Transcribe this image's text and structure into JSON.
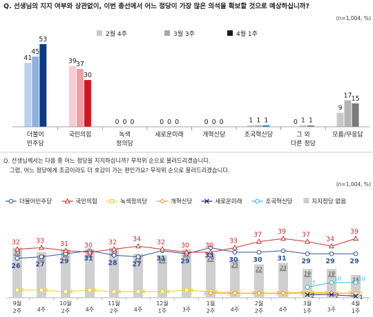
{
  "chart_data": [
    {
      "type": "bar",
      "question": "Q. 선생님의 지지 여부와 상관없이, 이번 총선에서 어느 정당이 가장 많은 의석을 확보할 것으로 예상하십니까?",
      "note": "(n=1,004, %)",
      "categories": [
        [
          "더불어",
          "민주당"
        ],
        [
          "국민의힘"
        ],
        [
          "녹색",
          "정의당"
        ],
        [
          "새로운미래"
        ],
        [
          "개혁신당"
        ],
        [
          "조국혁신당"
        ],
        [
          "그 외",
          "다른 정당"
        ],
        [
          "모름/무응답"
        ]
      ],
      "series": [
        {
          "name": "2월 4주",
          "color": "#c9d6ea",
          "values": [
            41,
            39,
            0,
            0,
            0,
            1,
            0,
            9
          ]
        },
        {
          "name": "3월 3주",
          "color": "#9fb8de",
          "values": [
            45,
            37,
            0,
            0,
            0,
            1,
            1,
            17
          ]
        },
        {
          "name": "4월 1주",
          "color": "#0f3f86",
          "values": [
            53,
            30,
            0,
            0,
            0,
            1,
            1,
            15
          ]
        }
      ],
      "party_colors": {
        "더불어민주당": [
          "#bcd1ee",
          "#8fb0de",
          "#0a3b87"
        ],
        "국민의힘": [
          "#f6cdd0",
          "#ef9ea4",
          "#d4141f"
        ],
        "조국혁신당": [
          "#c8c8c8",
          "#b8b8b8",
          "#1a8fd0"
        ],
        "그 외 다른 정당": [
          "#c8c8c8",
          "#c8c8c8",
          "#8a8a8a"
        ],
        "모름/무응답": [
          "#c8c8c8",
          "#b4b4b4",
          "#7a7a7a"
        ]
      },
      "legend_colors": [
        "#c8c8c8",
        "#a8a8a8",
        "#1a1a1a"
      ],
      "ylim": [
        0,
        60
      ]
    },
    {
      "type": "line",
      "question": [
        "Q. 선생님께서는 다음 중 어느 정당을 지지하십니까? 무작위 순으로 불러드리겠습니다.",
        "그럼, 어느 정당에게 조금이라도 더 호감이 가는 편인가요? 무작위 순으로 불러드리겠습니다."
      ],
      "note": "(n=1,004, %)",
      "x_labels": [
        [
          "9월",
          "2주"
        ],
        [
          "4주"
        ],
        [
          "10월",
          "2주"
        ],
        [
          "4주"
        ],
        [
          "11월",
          "2주"
        ],
        [
          "4주"
        ],
        [
          "12월",
          "1주"
        ],
        [
          "3주"
        ],
        [
          "1월",
          "2주"
        ],
        [
          "4주"
        ],
        [
          "2월",
          "2주"
        ],
        [
          "4주"
        ],
        [
          "3월",
          "1주"
        ],
        [
          "3주"
        ],
        [
          "4월",
          "1주"
        ]
      ],
      "x_sublabels": [
        "4주",
        "4주",
        "4주",
        "4주",
        "4주",
        "4주",
        "4주",
        "3주",
        "2주",
        "4주"
      ],
      "series": [
        {
          "name": "더불어민주당",
          "color": "#2a4f9c",
          "marker": "circle",
          "values": [
            26,
            27,
            29,
            31,
            28,
            27,
            31,
            29,
            33,
            30,
            30,
            31,
            29,
            29,
            29
          ],
          "labels": [
            "26",
            "27",
            "29",
            "31",
            "28",
            "27",
            "31",
            "29",
            "33",
            "30",
            "30",
            "31",
            "29",
            "29",
            "29"
          ]
        },
        {
          "name": "국민의힘",
          "color": "#d42a2a",
          "marker": "triangle",
          "values": [
            32,
            33,
            31,
            30,
            32,
            34,
            32,
            30,
            30,
            33,
            37,
            39,
            37,
            34,
            39
          ],
          "labels": [
            "32",
            "33",
            "31",
            "30",
            "32",
            "34",
            "32",
            "30",
            "30",
            "33",
            "37",
            "39",
            "37",
            "34",
            "39"
          ]
        },
        {
          "name": "녹색정의당",
          "color": "#f2cc1c",
          "marker": "square",
          "values": [
            5,
            5,
            4,
            5,
            4,
            4,
            4,
            5,
            4,
            3,
            3,
            3,
            4,
            3,
            3
          ],
          "labels": [
            "5",
            "5",
            "4",
            "5",
            "4",
            "4",
            "4",
            "5",
            "4",
            "3",
            "3",
            "3",
            "4",
            "3",
            "3"
          ]
        },
        {
          "name": "개혁신당",
          "color": "#f59a1f",
          "marker": "diamond",
          "values": [
            null,
            null,
            null,
            null,
            null,
            null,
            null,
            null,
            3,
            3,
            3,
            3,
            3,
            3,
            3
          ],
          "labels": [
            "",
            "",
            "",
            "",
            "",
            "",
            "",
            "",
            "3",
            "3",
            "3",
            "3",
            "3",
            "3",
            "3"
          ]
        },
        {
          "name": "새로운미래",
          "color": "#1d2a6e",
          "marker": "x",
          "values": [
            null,
            null,
            null,
            null,
            null,
            null,
            null,
            null,
            null,
            null,
            null,
            null,
            2,
            2,
            1
          ],
          "labels": [
            "",
            "",
            "",
            "",
            "",
            "",
            "",
            "",
            "",
            "",
            "",
            "",
            "2",
            "2",
            "1"
          ]
        },
        {
          "name": "조국혁신당",
          "color": "#34b6e6",
          "marker": "circle",
          "values": [
            null,
            null,
            null,
            null,
            null,
            null,
            null,
            null,
            null,
            null,
            null,
            null,
            7,
            10,
            10
          ],
          "labels": [
            "",
            "",
            "",
            "",
            "",
            "",
            "",
            "",
            "",
            "",
            "",
            "",
            "7",
            "10",
            "10"
          ]
        },
        {
          "name": "지지정당 없음",
          "color": "#cfcfcf",
          "marker": "bar",
          "values": [
            33,
            30,
            32,
            32,
            33,
            29,
            28,
            32,
            29,
            25,
            22,
            23,
            19,
            19,
            15
          ],
          "labels": [
            "33",
            "30",
            "32",
            "32",
            "33",
            "29",
            "28",
            "32",
            "29",
            "25",
            "22",
            "23",
            "19",
            "19",
            "15"
          ]
        }
      ],
      "ylim": [
        0,
        45
      ]
    }
  ]
}
